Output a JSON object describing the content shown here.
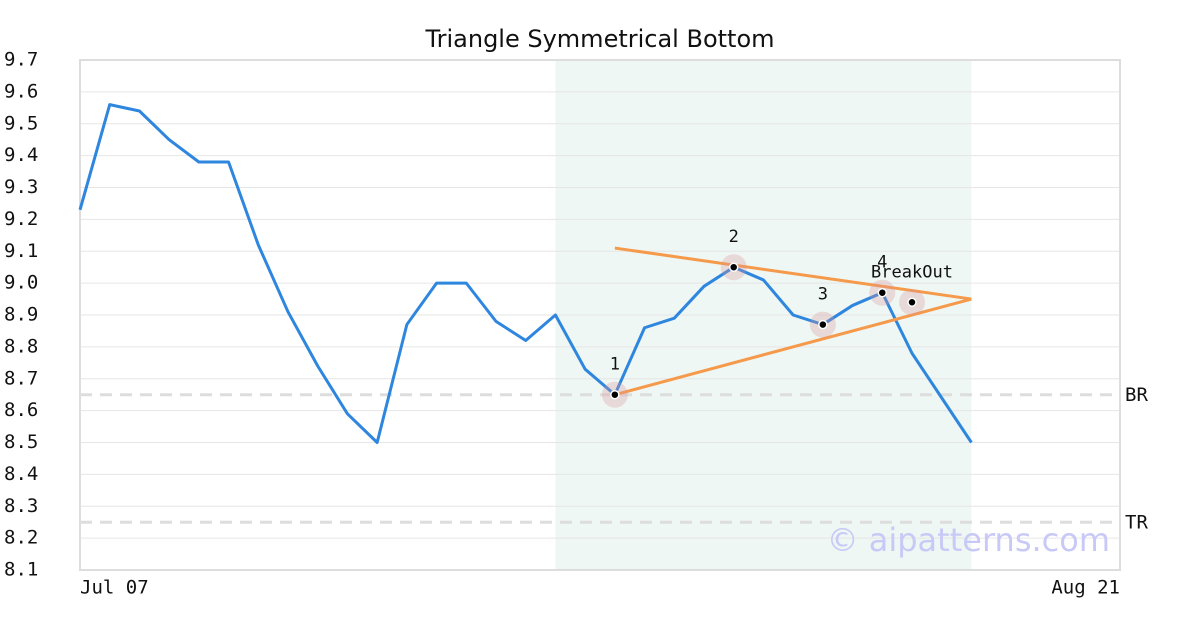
{
  "chart_data": {
    "type": "line",
    "title": "Triangle Symmetrical Bottom",
    "categories": [
      "Jul 07",
      null,
      null,
      null,
      null,
      null,
      null,
      null,
      null,
      null,
      null,
      null,
      null,
      null,
      null,
      null,
      null,
      null,
      null,
      null,
      null,
      null,
      null,
      null,
      null,
      null,
      null,
      null,
      null,
      null,
      null,
      null,
      null,
      null,
      null,
      "Aug 21"
    ],
    "values": [
      9.23,
      9.56,
      9.54,
      9.45,
      9.38,
      9.38,
      9.12,
      8.91,
      8.74,
      8.59,
      8.5,
      8.87,
      9.0,
      9.0,
      8.88,
      8.82,
      8.9,
      8.73,
      8.65,
      8.86,
      8.89,
      8.99,
      9.05,
      9.01,
      8.9,
      8.87,
      8.93,
      8.97,
      8.78,
      8.64,
      8.5,
      null,
      null,
      null,
      null,
      null
    ],
    "color": "#2e86de",
    "ylim": [
      8.1,
      9.7
    ],
    "yticks": [
      8.1,
      8.2,
      8.3,
      8.4,
      8.5,
      8.6,
      8.7,
      8.8,
      8.9,
      {
        "value": 9,
        "label": "9.0"
      },
      9.1,
      9.2,
      9.3,
      9.4,
      9.5,
      9.6,
      9.7
    ],
    "grid": true,
    "highlight": [
      16,
      30
    ],
    "highlight_color": "#eef7f3",
    "trendlines": [
      {
        "x": [
          18,
          30
        ],
        "values": [
          9.11,
          8.95
        ]
      },
      {
        "x": [
          18,
          30
        ],
        "values": [
          8.65,
          8.95
        ]
      }
    ],
    "trend_color": "#f5994a",
    "pattern_points": [
      {
        "label": "1",
        "x": 18,
        "value": 8.65
      },
      {
        "label": "2",
        "x": 22,
        "value": 9.05
      },
      {
        "label": "3",
        "x": 25,
        "value": 8.87
      },
      {
        "label": "4",
        "x": 27,
        "value": 8.97
      },
      {
        "label": "BreakOut",
        "x": 28,
        "value": 8.94
      }
    ],
    "levels": [
      {
        "label": "BR",
        "value": 8.65
      },
      {
        "label": "TR",
        "value": 8.25
      }
    ],
    "watermark": "© aipatterns.com"
  }
}
